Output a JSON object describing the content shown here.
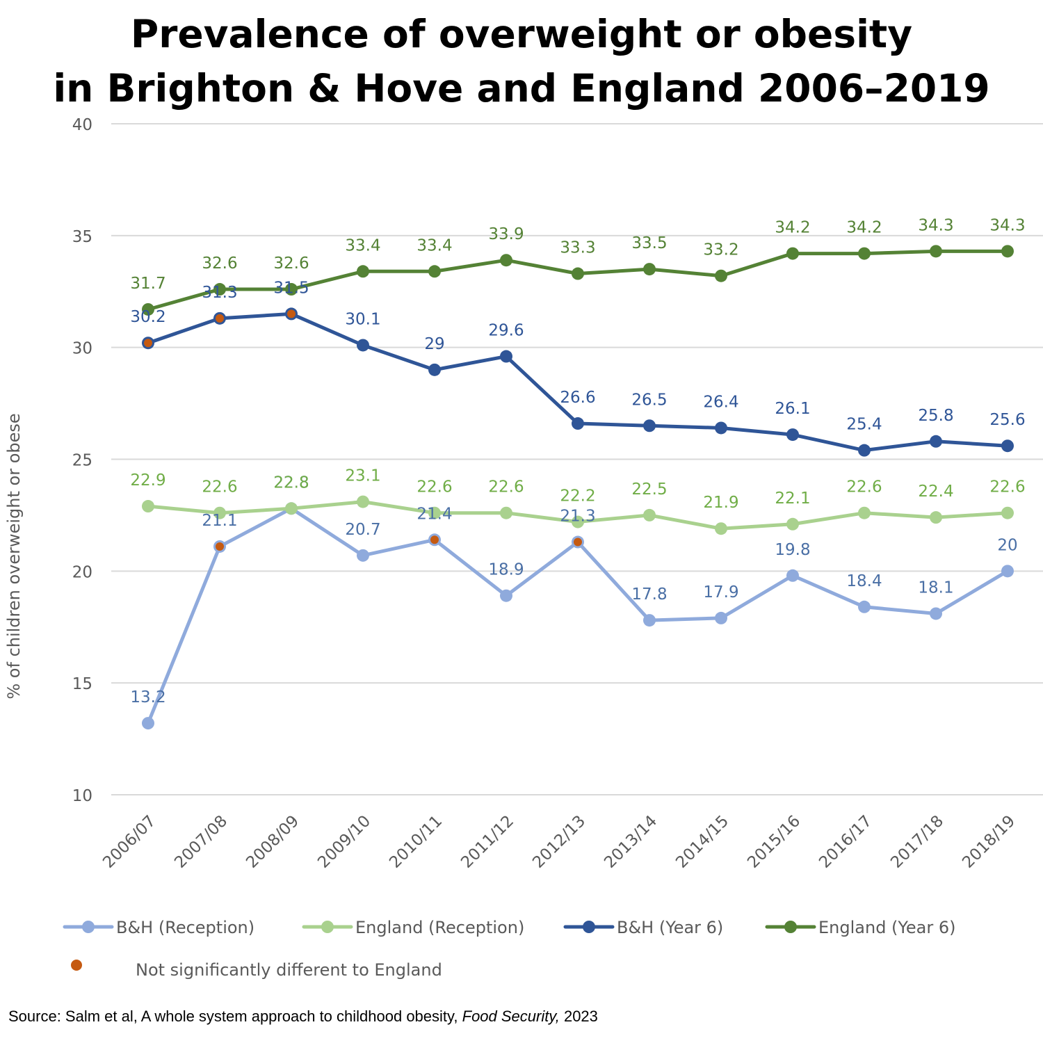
{
  "title": {
    "line1": "Prevalence of overweight or obesity",
    "line2": "in Brighton & Hove and England 2006–2019"
  },
  "chart_data": {
    "type": "line",
    "ylabel": "% of children overweight or obese",
    "xlabel": "",
    "ylim": [
      10,
      40
    ],
    "yticks": [
      10,
      15,
      20,
      25,
      30,
      35,
      40
    ],
    "grid": true,
    "legend_position": "bottom",
    "categories": [
      "2006/07",
      "2007/08",
      "2008/09",
      "2009/10",
      "2010/11",
      "2011/12",
      "2012/13",
      "2013/14",
      "2014/15",
      "2015/16",
      "2016/17",
      "2017/18",
      "2018/19"
    ],
    "series": [
      {
        "name": "B&H (Reception)",
        "color": "#8faadc",
        "label_color": "#4a6fa5",
        "values": [
          13.2,
          21.1,
          22.8,
          20.7,
          21.4,
          18.9,
          21.3,
          17.8,
          17.9,
          19.8,
          18.4,
          18.1,
          20
        ],
        "not_significant": [
          1,
          2,
          4,
          6
        ]
      },
      {
        "name": "England (Reception)",
        "color": "#a9d18e",
        "label_color": "#70ad47",
        "values": [
          22.9,
          22.6,
          22.8,
          23.1,
          22.6,
          22.6,
          22.2,
          22.5,
          21.9,
          22.1,
          22.6,
          22.4,
          22.6
        ],
        "not_significant": []
      },
      {
        "name": "B&H (Year 6)",
        "color": "#2f5597",
        "label_color": "#2f5597",
        "values": [
          30.2,
          31.3,
          31.5,
          30.1,
          29,
          29.6,
          26.6,
          26.5,
          26.4,
          26.1,
          25.4,
          25.8,
          25.6
        ],
        "not_significant": [
          0,
          1,
          2
        ]
      },
      {
        "name": "England (Year 6)",
        "color": "#548235",
        "label_color": "#548235",
        "values": [
          31.7,
          32.6,
          32.6,
          33.4,
          33.4,
          33.9,
          33.3,
          33.5,
          33.2,
          34.2,
          34.2,
          34.3,
          34.3
        ],
        "not_significant": []
      }
    ],
    "significance_marker": {
      "label": "Not significantly different to England",
      "color": "#c55a11"
    }
  },
  "source": {
    "prefix": "Source: Salm et al, A whole system approach to childhood obesity, ",
    "journal": "Food Security,",
    "suffix": " 2023"
  }
}
